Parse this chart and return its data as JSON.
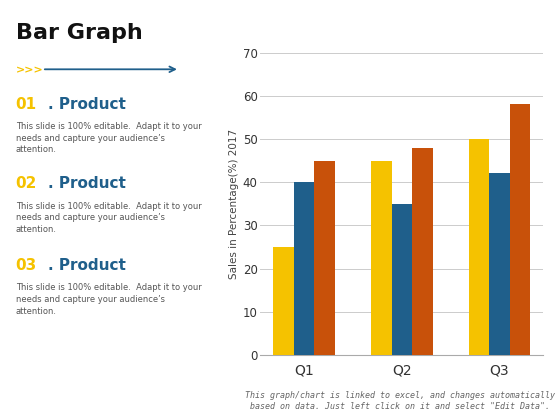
{
  "categories": [
    "Q1",
    "Q2",
    "Q3"
  ],
  "series": {
    "yellow": [
      25,
      45,
      50
    ],
    "blue": [
      40,
      35,
      42
    ],
    "orange": [
      45,
      48,
      58
    ]
  },
  "colors": {
    "yellow": "#F5C200",
    "blue": "#1F5F8B",
    "orange": "#C8510A"
  },
  "ylabel": "Sales in Percentage(%) 2017",
  "ylim": [
    0,
    70
  ],
  "yticks": [
    0,
    10,
    20,
    30,
    40,
    50,
    60,
    70
  ],
  "background_color": "#FFFFFF",
  "grid_color": "#CCCCCC",
  "footnote": "This graph/chart is linked to excel, and changes automatically\nbased on data. Just left click on it and select \"Edit Data\".",
  "title": "Bar Graph",
  "products": [
    {
      "number": "01",
      "label": ". Product"
    },
    {
      "number": "02",
      "label": ". Product"
    },
    {
      "number": "03",
      "label": ". Product"
    }
  ],
  "body_text": "This slide is 100% editable.  Adapt it to your\nneeds and capture your audience’s\nattention."
}
